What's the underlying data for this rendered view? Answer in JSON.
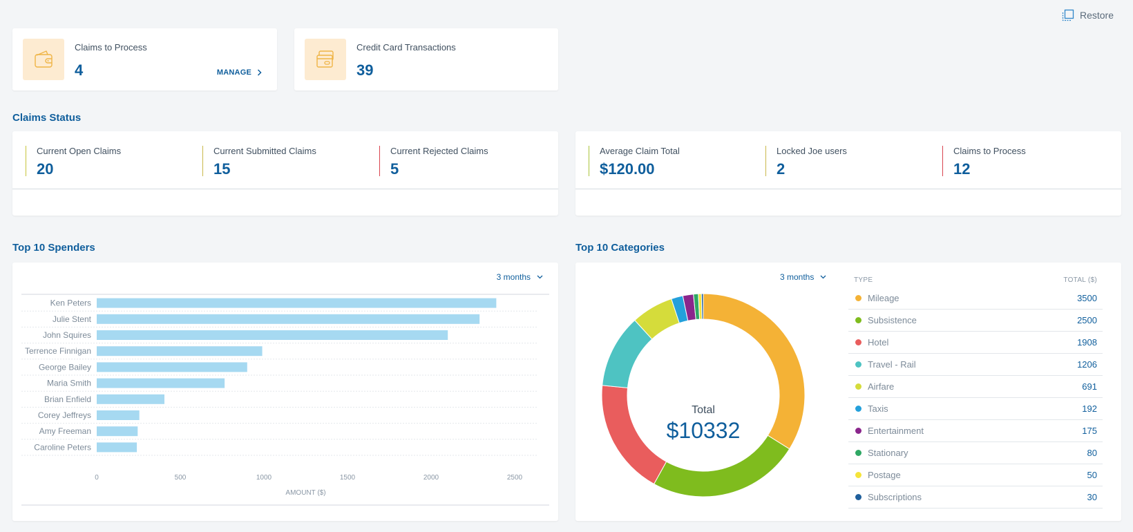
{
  "header": {
    "restore_label": "Restore",
    "restore_icon": "restore-window-icon"
  },
  "summary": [
    {
      "label": "Claims to Process",
      "value": "4",
      "action": "MANAGE",
      "icon": "wallet-icon"
    },
    {
      "label": "Credit Card Transactions",
      "value": "39",
      "icon": "credit-card-icon"
    }
  ],
  "claims_status": {
    "title": "Claims Status",
    "left": [
      {
        "label": "Current Open Claims",
        "value": "20",
        "color": "#c7c43a"
      },
      {
        "label": "Current Submitted Claims",
        "value": "15",
        "color": "#c9b84a"
      },
      {
        "label": "Current Rejected Claims",
        "value": "5",
        "color": "#d9434e"
      }
    ],
    "right": [
      {
        "label": "Average Claim Total",
        "value": "$120.00",
        "color": "#a9c43a"
      },
      {
        "label": "Locked Joe users",
        "value": "2",
        "color": "#c9b84a"
      },
      {
        "label": "Claims to Process",
        "value": "12",
        "color": "#d9434e"
      }
    ]
  },
  "spenders": {
    "title": "Top 10 Spenders",
    "period": "3 months"
  },
  "categories": {
    "title": "Top 10 Categories",
    "period": "3 months",
    "total_label": "Total",
    "total_value": "$10332",
    "col_type": "TYPE",
    "col_total": "TOTAL ($)"
  },
  "chart_data": [
    {
      "type": "bar",
      "orientation": "horizontal",
      "categories": [
        "Ken Peters",
        "Julie Stent",
        "John Squires",
        "Terrence Finnigan",
        "George Bailey",
        "Maria Smith",
        "Brian Enfield",
        "Corey Jeffreys",
        "Amy Freeman",
        "Caroline Peters"
      ],
      "values": [
        2390,
        2290,
        2100,
        990,
        900,
        765,
        405,
        255,
        245,
        240
      ],
      "xlabel": "AMOUNT ($)",
      "xticks": [
        0,
        500,
        1000,
        1500,
        2000,
        2500
      ],
      "xlim": [
        0,
        2500
      ],
      "color": "#a6d9f1",
      "grid": "horizontal-dotted"
    },
    {
      "type": "pie",
      "donut": true,
      "categories": [
        "Mileage",
        "Subsistence",
        "Hotel",
        "Travel - Rail",
        "Airfare",
        "Taxis",
        "Entertainment",
        "Stationary",
        "Postage",
        "Subscriptions"
      ],
      "values": [
        3500,
        2500,
        1908,
        1206,
        691,
        192,
        175,
        80,
        50,
        30
      ],
      "colors": [
        "#f4b236",
        "#7fbc1e",
        "#e95d5d",
        "#4ec3c2",
        "#d5dc3b",
        "#24a0db",
        "#8a268c",
        "#2fa864",
        "#f5e43a",
        "#1f5f9c"
      ]
    }
  ]
}
